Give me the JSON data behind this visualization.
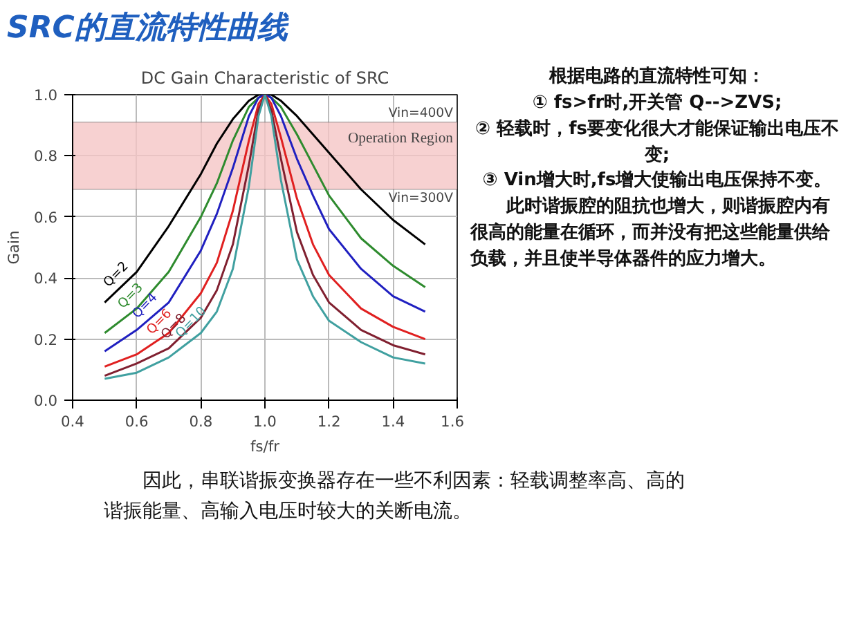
{
  "chart_data": {
    "type": "line",
    "title": "DC Gain Characteristic of SRC",
    "xlabel": "fs/fr",
    "ylabel": "Gain",
    "x": [
      0.5,
      0.6,
      0.7,
      0.8,
      0.85,
      0.9,
      0.95,
      0.98,
      1.0,
      1.02,
      1.05,
      1.1,
      1.15,
      1.2,
      1.3,
      1.4,
      1.5
    ],
    "series": [
      {
        "name": "Q=2",
        "color": "#000000",
        "values": [
          0.32,
          0.42,
          0.57,
          0.74,
          0.84,
          0.92,
          0.98,
          1.0,
          1.0,
          1.0,
          0.98,
          0.93,
          0.87,
          0.81,
          0.69,
          0.59,
          0.51
        ]
      },
      {
        "name": "Q=3",
        "color": "#2e8b2e",
        "values": [
          0.22,
          0.3,
          0.42,
          0.6,
          0.71,
          0.85,
          0.96,
          0.99,
          1.0,
          0.99,
          0.96,
          0.87,
          0.77,
          0.67,
          0.53,
          0.44,
          0.37
        ]
      },
      {
        "name": "Q=4",
        "color": "#2020c0",
        "values": [
          0.16,
          0.23,
          0.32,
          0.49,
          0.61,
          0.76,
          0.93,
          0.99,
          1.0,
          0.99,
          0.93,
          0.79,
          0.67,
          0.56,
          0.43,
          0.34,
          0.29
        ]
      },
      {
        "name": "Q=6",
        "color": "#e02020",
        "values": [
          0.11,
          0.15,
          0.22,
          0.35,
          0.45,
          0.62,
          0.85,
          0.97,
          1.0,
          0.97,
          0.86,
          0.66,
          0.51,
          0.41,
          0.3,
          0.24,
          0.2
        ]
      },
      {
        "name": "Q=8",
        "color": "#802030",
        "values": [
          0.08,
          0.12,
          0.17,
          0.27,
          0.36,
          0.51,
          0.77,
          0.95,
          1.0,
          0.95,
          0.79,
          0.55,
          0.41,
          0.32,
          0.23,
          0.18,
          0.15
        ]
      },
      {
        "name": "Q=10",
        "color": "#40a0a0",
        "values": [
          0.07,
          0.09,
          0.14,
          0.22,
          0.29,
          0.43,
          0.7,
          0.93,
          1.0,
          0.93,
          0.72,
          0.46,
          0.34,
          0.26,
          0.19,
          0.14,
          0.12
        ]
      }
    ],
    "xlim": [
      0.4,
      1.6
    ],
    "xticks": [
      0.4,
      0.6,
      0.8,
      {
        "value": 1.0,
        "label": "1.0"
      },
      1.2,
      1.4,
      1.6
    ],
    "ylim": [
      0,
      1
    ],
    "yticks": [
      {
        "value": 0,
        "label": "0.0"
      },
      0.2,
      0.4,
      0.6,
      0.8,
      {
        "value": 1.0,
        "label": "1.0"
      }
    ],
    "grid": true,
    "bands": [
      {
        "axis": "y",
        "from": 0.69,
        "to": 0.91,
        "label": "Operation Region",
        "color": "#f5c6c6"
      }
    ],
    "annotations": [
      "SRC的直流特性曲线",
      {
        "text": "Vin=400V",
        "y": 0.91
      },
      {
        "text": "Vin=300V",
        "y": 0.69
      },
      "根据电路的直流特性可知：",
      "① fs>fr时,开关管 Q-->ZVS;",
      "② 轻载时，fs要变化很大才能保证输出电压不变;",
      "③ Vin增大时,fs增大使输出电压保持不变。",
      "此时谐振腔的阻抗也增大，则谐振腔内有很高的能量在循环，而并没有把这些能量供给负载，并且使半导体器件的应力增大。",
      "因此，串联谐振变换器存在一些不利因素：轻载调整率高、高的谐振能量、高输入电压时较大的关断电流。"
    ]
  }
}
